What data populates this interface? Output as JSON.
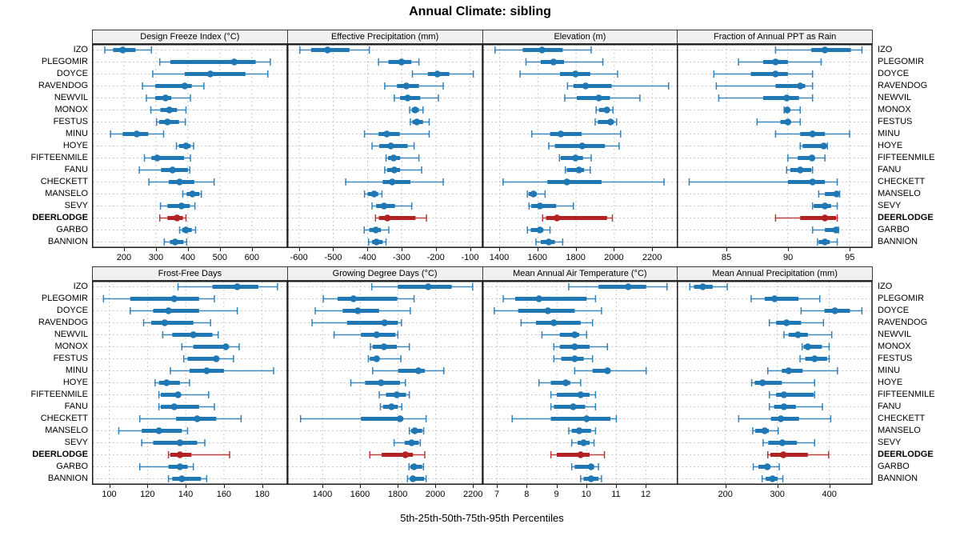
{
  "title": "Annual Climate: sibling",
  "caption": "5th-25th-50th-75th-95th Percentiles",
  "percentiles": [
    "5th",
    "25th",
    "50th",
    "75th",
    "95th"
  ],
  "sites": [
    "IZO",
    "PLEGOMIR",
    "DOYCE",
    "RAVENDOG",
    "NEWVIL",
    "MONOX",
    "FESTUS",
    "MINU",
    "HOYE",
    "FIFTEENMILE",
    "FANU",
    "CHECKETT",
    "MANSELO",
    "SEVY",
    "DEERLODGE",
    "GARBO",
    "BANNION"
  ],
  "highlight_site": "DEERLODGE",
  "colors": {
    "series": "#1F77B4",
    "highlight": "#B22222",
    "strip_bg": "#F0F0F0",
    "grid": "#C9C9C9",
    "border": "#1A1A1A"
  },
  "chart_data": [
    {
      "type": "dot-interval",
      "title": "Design Freeze Index (°C)",
      "row": 0,
      "col": 0,
      "xlim": [
        100,
        710
      ],
      "ticks": [
        200,
        300,
        400,
        500,
        600
      ],
      "values": [
        [
          140,
          166,
          196,
          236,
          286
        ],
        [
          312,
          345,
          545,
          612,
          658
        ],
        [
          290,
          390,
          470,
          580,
          650
        ],
        [
          258,
          298,
          390,
          412,
          450
        ],
        [
          270,
          298,
          330,
          348,
          408
        ],
        [
          284,
          314,
          342,
          366,
          394
        ],
        [
          302,
          310,
          336,
          372,
          392
        ],
        [
          158,
          196,
          240,
          276,
          324
        ],
        [
          364,
          372,
          394,
          408,
          418
        ],
        [
          264,
          286,
          304,
          388,
          408
        ],
        [
          248,
          316,
          352,
          400,
          406
        ],
        [
          278,
          340,
          374,
          420,
          482
        ],
        [
          384,
          396,
          414,
          436,
          442
        ],
        [
          314,
          336,
          380,
          406,
          422
        ],
        [
          312,
          336,
          366,
          384,
          394
        ],
        [
          374,
          382,
          394,
          412,
          424
        ],
        [
          326,
          344,
          360,
          386,
          396
        ]
      ]
    },
    {
      "type": "dot-interval",
      "title": "Effective Precipitation (mm)",
      "row": 0,
      "col": 1,
      "xlim": [
        -635,
        -65
      ],
      "ticks": [
        -600,
        -500,
        -400,
        -300,
        -200,
        -100
      ],
      "values": [
        [
          -598,
          -565,
          -517,
          -453,
          -395
        ],
        [
          -368,
          -339,
          -301,
          -272,
          -250
        ],
        [
          -269,
          -224,
          -196,
          -161,
          -91
        ],
        [
          -350,
          -314,
          -287,
          -250,
          -179
        ],
        [
          -322,
          -305,
          -283,
          -246,
          -193
        ],
        [
          -277,
          -271,
          -261,
          -250,
          -238
        ],
        [
          -275,
          -269,
          -256,
          -238,
          -220
        ],
        [
          -409,
          -368,
          -344,
          -306,
          -220
        ],
        [
          -387,
          -366,
          -332,
          -283,
          -264
        ],
        [
          -346,
          -340,
          -324,
          -305,
          -250
        ],
        [
          -350,
          -343,
          -322,
          -305,
          -242
        ],
        [
          -464,
          -356,
          -328,
          -275,
          -179
        ],
        [
          -409,
          -400,
          -381,
          -369,
          -358
        ],
        [
          -387,
          -375,
          -352,
          -320,
          -271
        ],
        [
          -377,
          -367,
          -342,
          -260,
          -228
        ],
        [
          -410,
          -395,
          -376,
          -361,
          -338
        ],
        [
          -397,
          -387,
          -374,
          -356,
          -346
        ]
      ]
    },
    {
      "type": "dot-interval",
      "title": "Elevation (m)",
      "row": 0,
      "col": 2,
      "xlim": [
        1310,
        2330
      ],
      "ticks": [
        1400,
        1600,
        1800,
        2000,
        2200
      ],
      "values": [
        [
          1376,
          1521,
          1622,
          1730,
          1879
        ],
        [
          1538,
          1615,
          1682,
          1737,
          1940
        ],
        [
          1507,
          1716,
          1797,
          1874,
          2017
        ],
        [
          1755,
          1786,
          1850,
          1986,
          2284
        ],
        [
          1741,
          1804,
          1919,
          1977,
          2134
        ],
        [
          1905,
          1920,
          1961,
          1975,
          1993
        ],
        [
          1900,
          1914,
          1980,
          1998,
          2012
        ],
        [
          1568,
          1664,
          1720,
          1829,
          2033
        ],
        [
          1657,
          1689,
          1832,
          1951,
          2025
        ],
        [
          1713,
          1720,
          1797,
          1836,
          1879
        ],
        [
          1744,
          1752,
          1815,
          1842,
          1874
        ],
        [
          1418,
          1650,
          1752,
          1933,
          2260
        ],
        [
          1545,
          1552,
          1577,
          1594,
          1638
        ],
        [
          1554,
          1566,
          1611,
          1696,
          1786
        ],
        [
          1625,
          1643,
          1700,
          1962,
          1990
        ],
        [
          1545,
          1563,
          1611,
          1629,
          1664
        ],
        [
          1590,
          1615,
          1657,
          1689,
          1730
        ]
      ]
    },
    {
      "type": "dot-interval",
      "title": "Fraction of Annual PPT as Rain",
      "row": 0,
      "col": 3,
      "xlim": [
        81,
        96.8
      ],
      "ticks": [
        85,
        90,
        95
      ],
      "values": [
        [
          89,
          91.9,
          93,
          95.1,
          96
        ],
        [
          86,
          88,
          89,
          90,
          92.7
        ],
        [
          84,
          87,
          89,
          90,
          92
        ],
        [
          84.2,
          89,
          91,
          91.4,
          92
        ],
        [
          84.4,
          88,
          89.9,
          90.9,
          92
        ],
        [
          89.7,
          89.8,
          89.95,
          90.1,
          91
        ],
        [
          87.5,
          89.4,
          90,
          90.2,
          91
        ],
        [
          89,
          91,
          92,
          93,
          95
        ],
        [
          91,
          91.2,
          92.9,
          93,
          93.2
        ],
        [
          90,
          90.8,
          91.95,
          92.1,
          93
        ],
        [
          89.9,
          90.2,
          91,
          91.9,
          92
        ],
        [
          82,
          90,
          92,
          93,
          94
        ],
        [
          92.5,
          93,
          93.95,
          94,
          94.2
        ],
        [
          92,
          92.1,
          93,
          93.5,
          94
        ],
        [
          89,
          91,
          93,
          93.9,
          94
        ],
        [
          92,
          93,
          93.9,
          94,
          94.1
        ],
        [
          92.4,
          92.5,
          93,
          93.4,
          94
        ]
      ]
    },
    {
      "type": "dot-interval",
      "title": "Frost-Free Days",
      "row": 1,
      "col": 0,
      "xlim": [
        91,
        193
      ],
      "ticks": [
        100,
        120,
        140,
        160,
        180
      ],
      "values": [
        [
          136,
          154,
          167,
          178,
          188
        ],
        [
          97,
          111,
          134,
          147,
          155
        ],
        [
          111,
          123,
          131,
          147,
          167
        ],
        [
          118,
          122,
          129,
          144,
          153
        ],
        [
          128,
          133,
          144,
          154,
          157
        ],
        [
          138,
          144,
          161,
          162,
          168
        ],
        [
          139,
          141,
          156,
          157,
          165
        ],
        [
          132,
          142,
          151,
          160,
          186
        ],
        [
          124,
          126,
          130,
          137,
          142
        ],
        [
          126,
          127,
          136,
          137,
          152
        ],
        [
          126,
          127,
          134,
          147,
          155
        ],
        [
          116,
          135,
          146,
          156,
          169
        ],
        [
          105,
          117,
          126,
          138,
          141
        ],
        [
          117,
          123,
          137,
          146,
          150
        ],
        [
          131,
          132,
          137,
          143,
          163
        ],
        [
          116,
          131,
          137,
          141,
          144
        ],
        [
          131,
          133,
          138,
          148,
          151
        ]
      ]
    },
    {
      "type": "dot-interval",
      "title": "Growing Degree Days (°C)",
      "row": 1,
      "col": 1,
      "xlim": [
        1212,
        2248
      ],
      "ticks": [
        1400,
        1600,
        1800,
        2000,
        2200
      ],
      "values": [
        [
          1661,
          1800,
          1961,
          2086,
          2197
        ],
        [
          1404,
          1480,
          1564,
          1797,
          1886
        ],
        [
          1361,
          1507,
          1587,
          1700,
          1866
        ],
        [
          1344,
          1530,
          1729,
          1800,
          1819
        ],
        [
          1461,
          1604,
          1687,
          1787,
          1800
        ],
        [
          1654,
          1666,
          1726,
          1794,
          1861
        ],
        [
          1643,
          1651,
          1687,
          1700,
          1816
        ],
        [
          1666,
          1801,
          1909,
          1943,
          2044
        ],
        [
          1550,
          1626,
          1711,
          1811,
          1840
        ],
        [
          1701,
          1737,
          1794,
          1843,
          1861
        ],
        [
          1707,
          1721,
          1766,
          1800,
          1821
        ],
        [
          1283,
          1604,
          1811,
          1829,
          1950
        ],
        [
          1861,
          1871,
          1890,
          1929,
          1937
        ],
        [
          1780,
          1836,
          1873,
          1911,
          1919
        ],
        [
          1651,
          1714,
          1840,
          1880,
          1943
        ],
        [
          1859,
          1866,
          1886,
          1929,
          1936
        ],
        [
          1851,
          1871,
          1880,
          1940,
          1950
        ]
      ]
    },
    {
      "type": "dot-interval",
      "title": "Mean Annual Air Temperature (°C)",
      "row": 1,
      "col": 2,
      "xlim": [
        6.5,
        13.05
      ],
      "ticks": [
        7,
        8,
        9,
        10,
        11,
        12
      ],
      "values": [
        [
          9.4,
          10.4,
          11.4,
          12.0,
          12.7
        ],
        [
          7.2,
          7.6,
          8.4,
          10.0,
          10.3
        ],
        [
          6.9,
          7.7,
          8.7,
          9.6,
          10.5
        ],
        [
          7.8,
          8.3,
          8.9,
          9.8,
          10.2
        ],
        [
          8.5,
          9.1,
          9.6,
          9.75,
          10.0
        ],
        [
          8.9,
          9.1,
          9.6,
          10.1,
          10.7
        ],
        [
          8.9,
          9.15,
          9.6,
          9.9,
          10.2
        ],
        [
          9.6,
          10.2,
          10.7,
          10.8,
          12.0
        ],
        [
          8.4,
          8.8,
          9.3,
          9.45,
          9.8
        ],
        [
          8.8,
          9.0,
          9.8,
          10.1,
          10.3
        ],
        [
          8.8,
          8.9,
          9.55,
          9.95,
          10.3
        ],
        [
          7.5,
          8.8,
          10.0,
          10.8,
          11.0
        ],
        [
          9.4,
          9.5,
          9.75,
          10.15,
          10.3
        ],
        [
          9.5,
          9.7,
          9.9,
          10.1,
          10.25
        ],
        [
          8.8,
          9.0,
          9.8,
          10.1,
          10.6
        ],
        [
          9.5,
          9.6,
          10.15,
          10.25,
          10.4
        ],
        [
          9.8,
          9.9,
          10.15,
          10.4,
          10.5
        ]
      ]
    },
    {
      "type": "dot-interval",
      "title": "Mean Annual Precipitation (mm)",
      "row": 1,
      "col": 3,
      "xlim": [
        107,
        482
      ],
      "ticks": [
        200,
        300,
        400
      ],
      "values": [
        [
          132,
          140,
          157,
          176,
          204
        ],
        [
          250,
          276,
          295,
          341,
          382
        ],
        [
          346,
          391,
          411,
          440,
          463
        ],
        [
          285,
          298,
          318,
          346,
          389
        ],
        [
          313,
          322,
          340,
          359,
          405
        ],
        [
          348,
          351,
          359,
          386,
          400
        ],
        [
          344,
          354,
          372,
          396,
          400
        ],
        [
          282,
          309,
          322,
          349,
          416
        ],
        [
          251,
          257,
          272,
          309,
          372
        ],
        [
          285,
          298,
          313,
          370,
          372
        ],
        [
          285,
          294,
          313,
          336,
          387
        ],
        [
          226,
          288,
          307,
          342,
          403
        ],
        [
          253,
          258,
          276,
          284,
          302
        ],
        [
          273,
          283,
          310,
          338,
          372
        ],
        [
          282,
          287,
          312,
          359,
          399
        ],
        [
          254,
          264,
          281,
          287,
          304
        ],
        [
          271,
          278,
          291,
          301,
          311
        ]
      ]
    }
  ]
}
